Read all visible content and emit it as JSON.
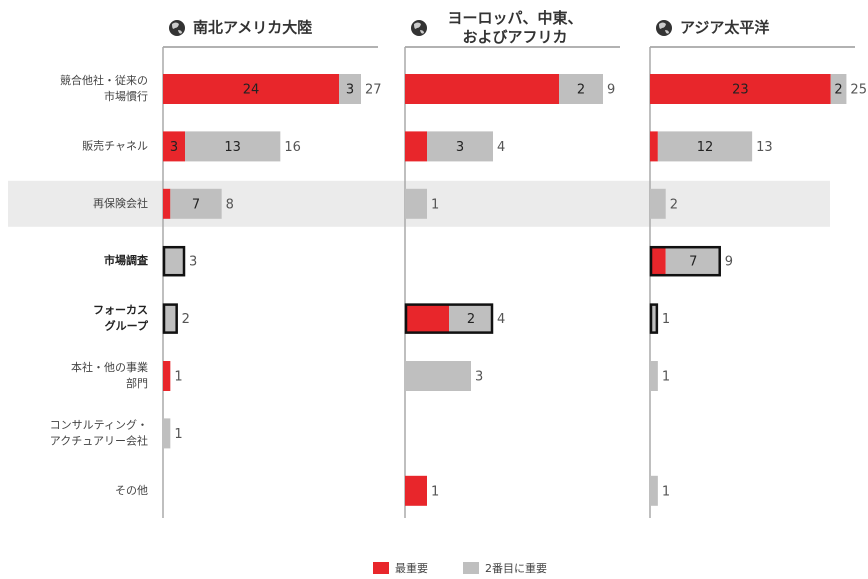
{
  "chart_data": {
    "type": "bar",
    "orientation": "horizontal",
    "categories": [
      [
        "競合他社・従来の",
        "市場慣行"
      ],
      [
        "販売チャネル"
      ],
      [
        "再保険会社"
      ],
      [
        "市場調査"
      ],
      [
        "フォーカス",
        "グループ"
      ],
      [
        "本社・他の事業",
        "部門"
      ],
      [
        "コンサルティング・",
        "アクチュアリー会社"
      ],
      [
        "その他"
      ]
    ],
    "bold_categories": [
      3,
      4
    ],
    "shaded_category": 2,
    "legend": {
      "position": "bottom",
      "entries": [
        {
          "name": "最重要",
          "color": "#e8262b"
        },
        {
          "name": "2番目に重要",
          "color": "#bfbfbf"
        }
      ]
    },
    "panels": [
      {
        "title": [
          "南北アメリカ大陸"
        ],
        "xlim": [
          0,
          30
        ],
        "outlined": [
          3,
          4
        ],
        "series": [
          {
            "values": [
              24,
              3,
              1,
              null,
              null,
              1,
              null,
              null
            ],
            "value_labels": [
              "24",
              "3",
              null,
              null,
              null,
              null,
              null,
              null
            ]
          },
          {
            "values": [
              3,
              13,
              7,
              3,
              2,
              null,
              1,
              null
            ],
            "value_labels": [
              "3",
              "13",
              "7",
              null,
              null,
              null,
              null,
              null
            ]
          }
        ],
        "totals": [
          27,
          16,
          8,
          3,
          2,
          1,
          1,
          null
        ]
      },
      {
        "title": [
          "ヨーロッパ、中東、",
          "およびアフリカ"
        ],
        "xlim": [
          0,
          10
        ],
        "outlined": [
          4
        ],
        "series": [
          {
            "values": [
              7,
              1,
              null,
              null,
              2,
              null,
              null,
              1
            ],
            "value_labels": [
              null,
              null,
              null,
              null,
              null,
              null,
              null,
              null
            ]
          },
          {
            "values": [
              2,
              3,
              1,
              null,
              2,
              3,
              null,
              null
            ],
            "value_labels": [
              "2",
              "3",
              null,
              null,
              "2",
              null,
              null,
              null
            ]
          }
        ],
        "totals": [
          9,
          4,
          1,
          null,
          4,
          3,
          null,
          1
        ]
      },
      {
        "title": [
          "アジア太平洋"
        ],
        "xlim": [
          0,
          28
        ],
        "outlined": [
          3,
          4
        ],
        "series": [
          {
            "values": [
              23,
              1,
              null,
              2,
              null,
              null,
              null,
              null
            ],
            "value_labels": [
              "23",
              null,
              null,
              null,
              null,
              null,
              null,
              null
            ]
          },
          {
            "values": [
              2,
              12,
              2,
              7,
              1,
              1,
              null,
              1
            ],
            "value_labels": [
              "2",
              "12",
              null,
              "7",
              null,
              null,
              null,
              null
            ]
          }
        ],
        "totals": [
          25,
          13,
          2,
          9,
          1,
          1,
          null,
          1
        ]
      }
    ]
  }
}
